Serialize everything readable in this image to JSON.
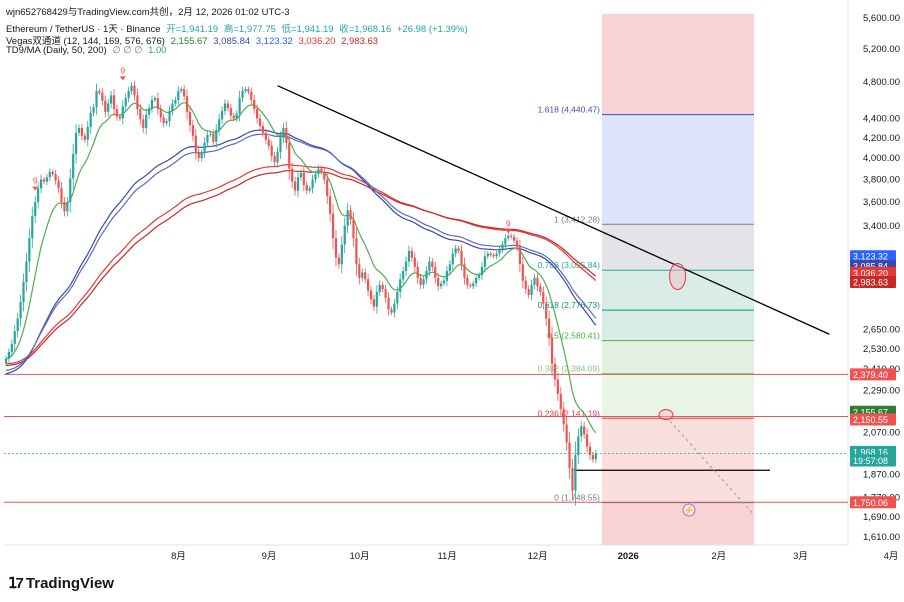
{
  "watermark": "wjn652768429与TradingView.com共创，2月 12, 2026 01:02 UTC-3",
  "legend": {
    "symbol": "Ethereum / TetherUS · 1天 · Binance",
    "open": "开=1,941.19",
    "high": "高=1,977.75",
    "low": "低=1,941.19",
    "close": "收=1,968.16",
    "change": "+26.98 (+1.39%)",
    "vegas_label": "Vegas双通道 (12, 144, 169, 576, 676)",
    "vegas_values": [
      "2,155.67",
      "3,085.84",
      "3,123.32",
      "3,036.20",
      "2,983.63"
    ],
    "td_label": "TD9/MA (Daily, 50, 200)",
    "td_marks": "∅ ∅ ∅",
    "td_value": "1.00"
  },
  "brand": "TradingView",
  "colors": {
    "up": "#26a69a",
    "down": "#ef5350",
    "ema12": "#4caf50",
    "blue_band": "#4f4fd9",
    "red_band": "#e0575a",
    "trendline": "#000000"
  },
  "chart_data": {
    "type": "candlestick",
    "symbol": "ETH/USDT",
    "interval": "1D",
    "y_axis": {
      "scale": "log",
      "ticks": [
        "5,600.00",
        "5,200.00",
        "4,800.00",
        "4,400.00",
        "4,200.00",
        "4,000.00",
        "3,800.00",
        "3,600.00",
        "3,400.00",
        "2,650.00",
        "2,530.00",
        "2,410.00",
        "2,290.00",
        "2,070.00",
        "1,870.00",
        "1,770.00",
        "1,690.00",
        "1,610.00"
      ],
      "tick_values": [
        5600,
        5200,
        4800,
        4400,
        4200,
        4000,
        3800,
        3600,
        3400,
        2650,
        2530,
        2410,
        2290,
        2070,
        1870,
        1770,
        1690,
        1610
      ]
    },
    "x_axis": {
      "ticks": [
        "8月",
        "9月",
        "10月",
        "11月",
        "12月",
        "2026",
        "2月",
        "3月",
        "4月"
      ],
      "tick_days": [
        31,
        62,
        93,
        123,
        154,
        185,
        216,
        244,
        275
      ]
    },
    "price_tags": [
      {
        "value": "3,123.32",
        "color": "#2962ff"
      },
      {
        "value": "3,085.84",
        "color": "#3949ab"
      },
      {
        "value": "3,036.20",
        "color": "#e53935"
      },
      {
        "value": "2,983.63",
        "color": "#c62828"
      },
      {
        "value": "2,379.40",
        "color": "#ef5350"
      },
      {
        "value": "2,155.67",
        "color": "#2e7d32"
      },
      {
        "value": "2,150.55",
        "color": "#ef5350"
      },
      {
        "value": "1,968.16",
        "color": "#26a69a"
      },
      {
        "value": "19:57:08",
        "color": "#26a69a"
      },
      {
        "value": "1,750.06",
        "color": "#ef5350"
      }
    ],
    "fib_levels": [
      {
        "label": "1.618 (4,440.47)",
        "ratio": 1.618,
        "value": 4440.47,
        "color": "#3f51b5"
      },
      {
        "label": "1 (3,412.28)",
        "ratio": 1,
        "value": 3412.28,
        "color": "#787b86"
      },
      {
        "label": "0.786 (3,055.84)",
        "ratio": 0.786,
        "value": 3055.84,
        "color": "#22ab94"
      },
      {
        "label": "0.618 (2,776.73)",
        "ratio": 0.618,
        "value": 2776.73,
        "color": "#089981"
      },
      {
        "label": "0.5 (2,580.41)",
        "ratio": 0.5,
        "value": 2580.41,
        "color": "#4caf50"
      },
      {
        "label": "0.382 (2,384.09)",
        "ratio": 0.382,
        "value": 2384.09,
        "color": "#81c784"
      },
      {
        "label": "0.236 (2,141.19)",
        "ratio": 0.236,
        "value": 2141.19,
        "color": "#f23645"
      },
      {
        "label": "0 (1,748.55)",
        "ratio": 0,
        "value": 1748.55,
        "color": "#787b86"
      }
    ],
    "horizontal_lines": [
      2379.4,
      2150.55,
      1750.06,
      1890
    ],
    "trendline": {
      "from": {
        "day": 93,
        "price": 4760
      },
      "to": {
        "day": 282,
        "price": 2620
      }
    },
    "td9_marks": [
      {
        "day": 10,
        "price": 3690,
        "label": "9",
        "color": "#ef5350"
      },
      {
        "day": 40,
        "price": 4810,
        "label": "9",
        "color": "#ef5350"
      },
      {
        "day": 172,
        "price": 3330,
        "label": "9",
        "color": "#ef5350"
      }
    ],
    "circles": [
      {
        "day": 230,
        "price": 3010
      },
      {
        "day": 226,
        "price": 2160
      }
    ],
    "series": {
      "close": [
        2470,
        2510,
        2560,
        2640,
        2720,
        2830,
        2970,
        3120,
        3300,
        3480,
        3600,
        3720,
        3800,
        3780,
        3820,
        3870,
        3850,
        3790,
        3720,
        3600,
        3520,
        3600,
        3810,
        4040,
        4250,
        4300,
        4220,
        4180,
        4310,
        4460,
        4520,
        4700,
        4680,
        4590,
        4470,
        4560,
        4650,
        4500,
        4420,
        4400,
        4530,
        4620,
        4700,
        4760,
        4650,
        4500,
        4390,
        4300,
        4440,
        4510,
        4600,
        4620,
        4500,
        4410,
        4350,
        4370,
        4480,
        4560,
        4600,
        4700,
        4720,
        4640,
        4470,
        4330,
        4220,
        4060,
        4000,
        4050,
        4150,
        4230,
        4240,
        4160,
        4280,
        4390,
        4480,
        4560,
        4510,
        4430,
        4400,
        4450,
        4620,
        4700,
        4720,
        4690,
        4600,
        4500,
        4400,
        4320,
        4250,
        4180,
        4120,
        4020,
        3960,
        4060,
        4200,
        4300,
        4150,
        3900,
        3780,
        3700,
        3820,
        3860,
        3750,
        3700,
        3720,
        3800,
        3850,
        3900,
        3870,
        3800,
        3650,
        3500,
        3300,
        3150,
        3100,
        3250,
        3400,
        3530,
        3450,
        3300,
        3100,
        3000,
        3040,
        2990,
        2910,
        2850,
        2800,
        2900,
        2950,
        2920,
        2860,
        2780,
        2760,
        2820,
        2900,
        2990,
        3050,
        3120,
        3200,
        3150,
        3080,
        3000,
        2950,
        2990,
        3050,
        3120,
        3080,
        3000,
        2940,
        2960,
        2980,
        3050,
        3100,
        3180,
        3220,
        3200,
        3100,
        3000,
        2950,
        2940,
        2960,
        3000,
        3020,
        3080,
        3160,
        3180,
        3170,
        3160,
        3180,
        3210,
        3250,
        3300,
        3320,
        3310,
        3280,
        3230,
        3100,
        2980,
        2920,
        2880,
        2950,
        3000,
        2940,
        2900,
        2820,
        2720,
        2600,
        2440,
        2350,
        2270,
        2190,
        2110,
        2020,
        1900,
        1800,
        1960,
        2050,
        2100,
        2060,
        2000,
        1960,
        1940,
        1968.16
      ]
    }
  }
}
